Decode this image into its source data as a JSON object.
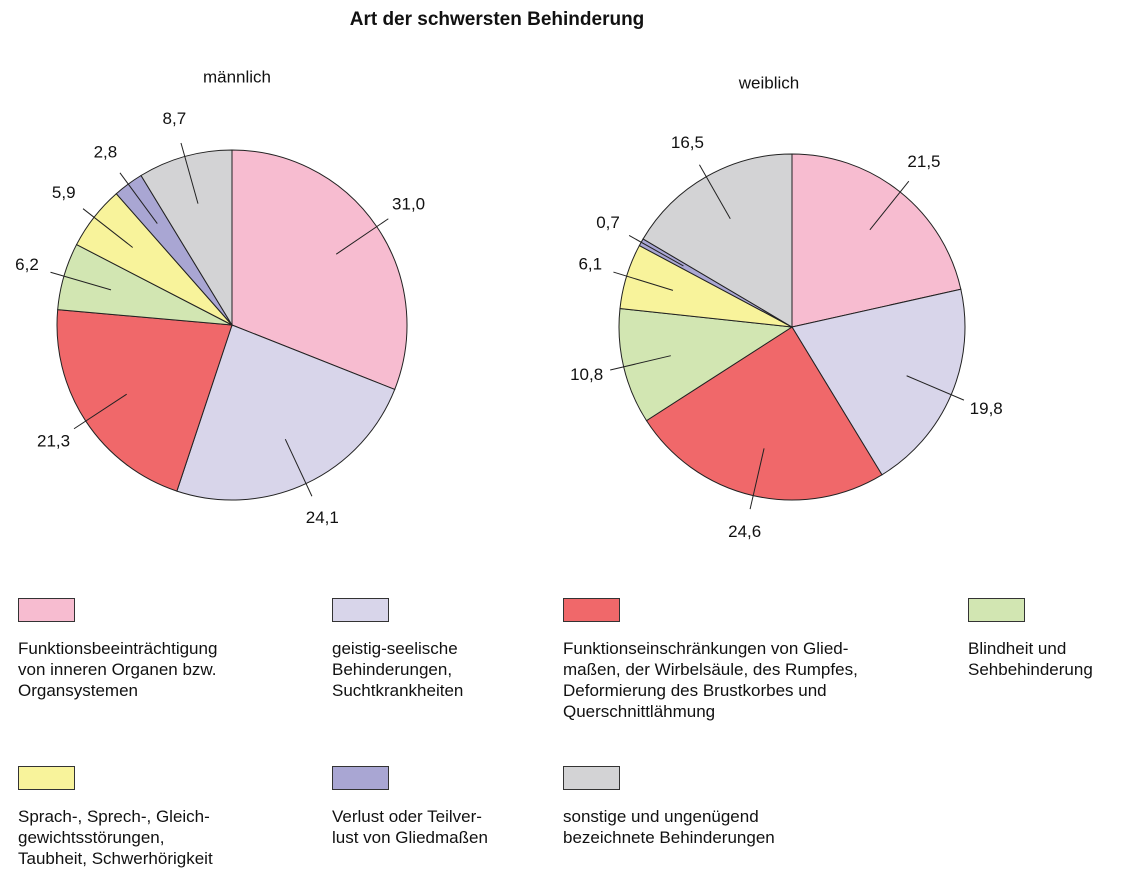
{
  "chart_data": {
    "type": "pie",
    "title": "Art der schwersten Behinderung",
    "categories": [
      "Funktionsbeeinträchtigung\nvon inneren Organen bzw.\nOrgansystemen",
      "geistig-seelische\nBehinderungen,\nSuchtkrankheiten",
      "Funktionseinschränkungen von Glied-\nmaßen, der Wirbelsäule, des Rumpfes,\nDeformierung des Brustkorbes und\nQuerschnittlähmung",
      "Blindheit und\nSehbehinderung",
      "Sprach-, Sprech-, Gleich-\ngewichtsstörungen,\nTaubheit, Schwerhörigkeit",
      "Verlust oder Teilver-\nlust von Gliedmaßen",
      "sonstige und ungenügend\nbezeichnete Behinderungen"
    ],
    "colors": [
      "#f7bcd0",
      "#d8d5ea",
      "#f0686a",
      "#d2e6b2",
      "#f8f39b",
      "#a9a6d3",
      "#d3d3d5"
    ],
    "series": [
      {
        "name": "männlich",
        "values": [
          31.0,
          24.1,
          21.3,
          6.2,
          5.9,
          2.8,
          8.7
        ],
        "value_labels": [
          "31,0",
          "24,1",
          "21,3",
          "6,2",
          "5,9",
          "2,8",
          "8,7"
        ]
      },
      {
        "name": "weiblich",
        "values": [
          21.5,
          19.8,
          24.6,
          10.8,
          6.1,
          0.7,
          16.5
        ],
        "value_labels": [
          "21,5",
          "19,8",
          "24,6",
          "10,8",
          "6,1",
          "0,7",
          "16,5"
        ]
      }
    ]
  }
}
